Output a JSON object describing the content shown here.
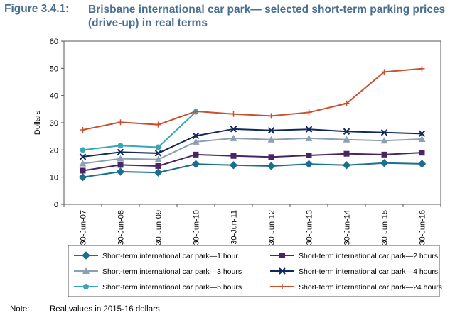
{
  "figure_label": "Figure 3.4.1:",
  "figure_title": "Brisbane international car park— selected short-term parking prices (drive-up) in real terms",
  "note_label": "Note:",
  "note_text": "Real values in 2015-16 dollars",
  "chart_data": {
    "type": "line",
    "title": "Brisbane international car park— selected short-term parking prices (drive-up) in real terms",
    "xlabel": "",
    "ylabel": "Dollars",
    "ylim": [
      0,
      60
    ],
    "yticks": [
      0,
      10,
      20,
      30,
      40,
      50,
      60
    ],
    "grid": false,
    "legend": "bottom",
    "categories": [
      "30-Jun-07",
      "30-Jun-08",
      "30-Jun-09",
      "30-Jun-10",
      "30-Jun-11",
      "30-Jun-12",
      "30-Jun-13",
      "30-Jun-14",
      "30-Jun-15",
      "30-Jun-16"
    ],
    "series": [
      {
        "name": "Short-term international car park—1 hour",
        "color": "#1a6f8a",
        "marker": "diamond",
        "values": [
          10.0,
          12.0,
          11.7,
          14.8,
          14.4,
          14.1,
          14.8,
          14.4,
          15.2,
          14.9
        ]
      },
      {
        "name": "Short-term international car park—2 hours",
        "color": "#4b2466",
        "marker": "square",
        "values": [
          12.4,
          14.5,
          14.1,
          18.3,
          17.8,
          17.4,
          18.0,
          18.6,
          18.3,
          19.0
        ]
      },
      {
        "name": "Short-term international car park—3 hours",
        "color": "#8c9fb3",
        "marker": "triangle",
        "values": [
          15.0,
          16.8,
          16.5,
          23.0,
          24.3,
          23.8,
          24.3,
          23.8,
          23.4,
          24.0
        ]
      },
      {
        "name": "Short-term international car park—4 hours",
        "color": "#10285a",
        "marker": "x",
        "values": [
          17.5,
          19.2,
          18.8,
          25.2,
          27.7,
          27.2,
          27.6,
          26.8,
          26.4,
          26.0
        ]
      },
      {
        "name": "Short-term international car park—5 hours",
        "color": "#3aa5b4",
        "marker": "circle",
        "values": [
          20.0,
          21.6,
          21.0,
          34.0,
          null,
          null,
          null,
          null,
          null,
          null
        ]
      },
      {
        "name": "Short-term international car park—24 hours",
        "color": "#c8502e",
        "marker": "plus",
        "values": [
          27.4,
          30.2,
          29.3,
          34.2,
          33.2,
          32.5,
          33.8,
          37.1,
          48.7,
          49.9
        ]
      }
    ]
  }
}
